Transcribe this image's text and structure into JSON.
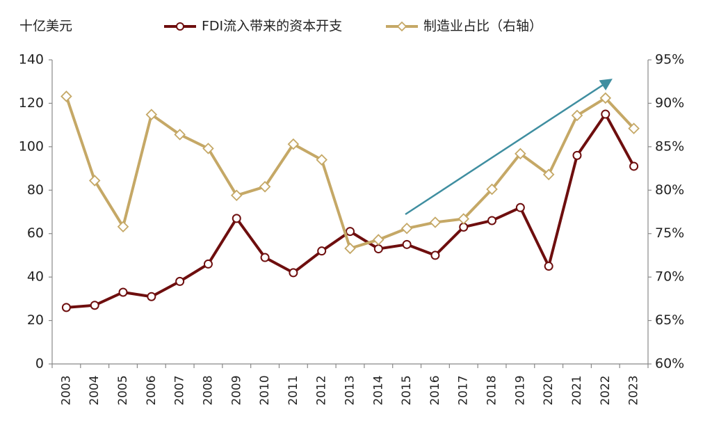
{
  "chart_data": {
    "type": "line",
    "left_unit": "十亿美元",
    "categories": [
      "2003",
      "2004",
      "2005",
      "2006",
      "2007",
      "2008",
      "2009",
      "2010",
      "2011",
      "2012",
      "2013",
      "2014",
      "2015",
      "2016",
      "2017",
      "2018",
      "2019",
      "2020",
      "2021",
      "2022",
      "2023"
    ],
    "series": [
      {
        "name": "FDI流入带来的资本开支",
        "color": "#6e0e0e",
        "marker": "circle",
        "values": [
          26,
          27,
          33,
          31,
          38,
          46,
          67,
          49,
          42,
          52,
          61,
          53,
          55,
          50,
          63,
          66,
          72,
          45,
          96,
          115,
          91
        ]
      },
      {
        "name": "制造业占比（右轴）",
        "color": "#c5a866",
        "marker": "diamond",
        "axis": "y2",
        "values": [
          90.8,
          81.1,
          75.8,
          88.7,
          86.4,
          84.8,
          79.4,
          80.4,
          85.3,
          83.5,
          73.3,
          74.3,
          75.6,
          76.3,
          76.7,
          80.1,
          84.2,
          81.8,
          88.6,
          90.6,
          87.1
        ]
      }
    ],
    "ylim": [
      0,
      140
    ],
    "yticks": [
      0,
      20,
      40,
      60,
      80,
      100,
      120,
      140
    ],
    "y2lim": [
      60,
      95
    ],
    "y2ticks": [
      {
        "value": 60,
        "label": "60%"
      },
      {
        "value": 65,
        "label": "65%"
      },
      {
        "value": 70,
        "label": "70%"
      },
      {
        "value": 75,
        "label": "75%"
      },
      {
        "value": 80,
        "label": "80%"
      },
      {
        "value": 85,
        "label": "85%"
      },
      {
        "value": 90,
        "label": "90%"
      },
      {
        "value": 95,
        "label": "95%"
      }
    ],
    "grid": false
  }
}
